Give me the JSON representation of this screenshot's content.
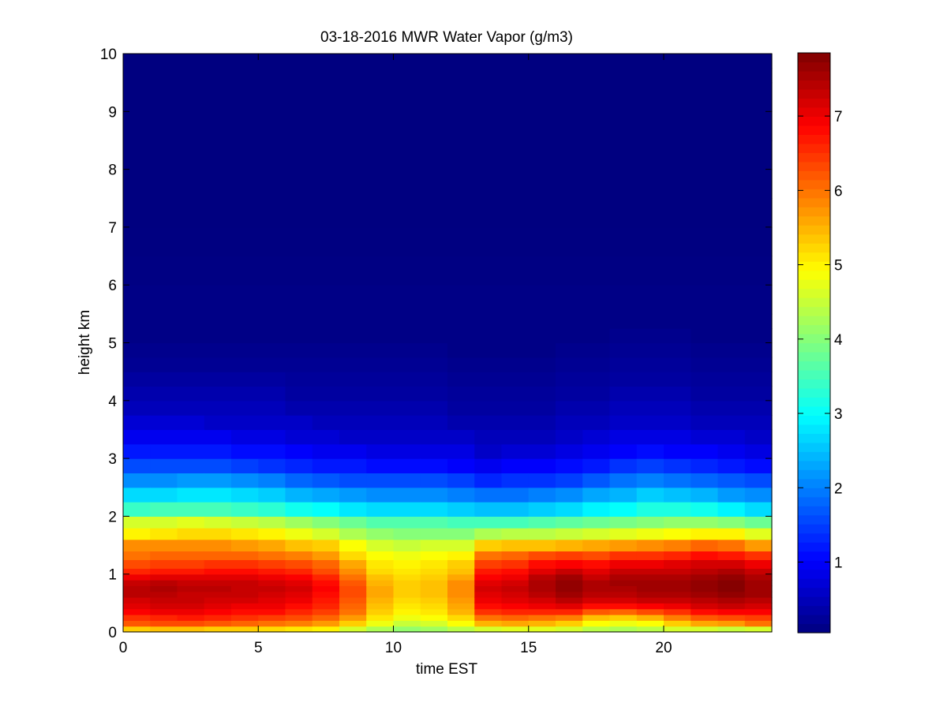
{
  "chart_data": {
    "type": "heatmap",
    "title": "03-18-2016 MWR Water Vapor (g/m3)",
    "xlabel": "time EST",
    "ylabel": "height km",
    "xlim": [
      0,
      24
    ],
    "ylim": [
      0,
      10
    ],
    "xticks": [
      0,
      5,
      10,
      15,
      20
    ],
    "yticks": [
      0,
      1,
      2,
      3,
      4,
      5,
      6,
      7,
      8,
      9,
      10
    ],
    "colorbar": {
      "colormap": "jet",
      "range": [
        0.05,
        7.85
      ],
      "ticks": [
        1,
        2,
        3,
        4,
        5,
        6,
        7
      ]
    },
    "grid": false,
    "time_hours_EST": [
      0,
      1,
      2,
      3,
      4,
      5,
      6,
      7,
      8,
      9,
      10,
      11,
      12,
      13,
      14,
      15,
      16,
      17,
      18,
      19,
      20,
      21,
      22,
      23
    ],
    "height_km": [
      0.0,
      0.1,
      0.2,
      0.3,
      0.4,
      0.5,
      0.6,
      0.7,
      0.8,
      0.9,
      1.0,
      1.1,
      1.25,
      1.4,
      1.6,
      1.8,
      2.0,
      2.25,
      2.5,
      2.75,
      3.0,
      3.25,
      3.5,
      3.75,
      4.0,
      4.25,
      4.5,
      4.75,
      5.0,
      5.25,
      5.5,
      6.0,
      6.5,
      7.0,
      7.5,
      8.0,
      8.5,
      9.0,
      9.5,
      9.75
    ],
    "water_vapor_profiles_g_m3": [
      [
        5.3,
        6.2,
        6.5,
        6.9,
        7.1,
        7.2,
        7.4,
        7.4,
        7.3,
        7.0,
        6.6,
        6.3,
        6.0,
        5.8,
        5.0,
        4.6,
        3.4,
        2.7,
        2.1,
        1.6,
        1.2,
        0.9,
        0.7,
        0.5,
        0.4,
        0.3,
        0.2,
        0.15,
        0.1,
        0.1,
        0.1,
        0.08,
        0.06,
        0.05,
        0.05,
        0.05,
        0.05,
        0.05,
        0.05,
        0.05
      ],
      [
        5.4,
        6.3,
        6.6,
        7.0,
        7.2,
        7.3,
        7.4,
        7.5,
        7.4,
        7.1,
        6.7,
        6.4,
        6.1,
        5.8,
        5.1,
        4.6,
        3.5,
        2.7,
        2.1,
        1.6,
        1.2,
        0.9,
        0.7,
        0.5,
        0.4,
        0.3,
        0.2,
        0.15,
        0.1,
        0.1,
        0.1,
        0.08,
        0.06,
        0.05,
        0.05,
        0.05,
        0.05,
        0.05,
        0.05,
        0.05
      ],
      [
        5.4,
        6.3,
        6.7,
        7.0,
        7.2,
        7.3,
        7.3,
        7.4,
        7.3,
        7.1,
        6.7,
        6.4,
        6.1,
        5.8,
        5.2,
        4.7,
        3.5,
        2.8,
        2.2,
        1.6,
        1.2,
        0.9,
        0.7,
        0.5,
        0.4,
        0.3,
        0.2,
        0.15,
        0.1,
        0.1,
        0.1,
        0.08,
        0.06,
        0.05,
        0.05,
        0.05,
        0.05,
        0.05,
        0.05,
        0.05
      ],
      [
        5.3,
        6.2,
        6.6,
        6.9,
        7.1,
        7.2,
        7.3,
        7.4,
        7.3,
        7.1,
        6.8,
        6.5,
        6.1,
        5.8,
        5.2,
        4.6,
        3.5,
        2.8,
        2.2,
        1.6,
        1.2,
        0.9,
        0.6,
        0.5,
        0.4,
        0.3,
        0.2,
        0.15,
        0.1,
        0.1,
        0.1,
        0.08,
        0.06,
        0.05,
        0.05,
        0.05,
        0.05,
        0.05,
        0.05,
        0.05
      ],
      [
        5.3,
        6.1,
        6.5,
        6.8,
        7.0,
        7.2,
        7.3,
        7.3,
        7.3,
        7.1,
        6.8,
        6.5,
        6.1,
        5.7,
        5.1,
        4.5,
        3.4,
        2.7,
        2.1,
        1.5,
        1.1,
        0.8,
        0.6,
        0.5,
        0.4,
        0.3,
        0.2,
        0.15,
        0.1,
        0.1,
        0.1,
        0.08,
        0.06,
        0.05,
        0.05,
        0.05,
        0.05,
        0.05,
        0.05,
        0.05
      ],
      [
        5.2,
        6.0,
        6.4,
        6.8,
        7.0,
        7.1,
        7.2,
        7.3,
        7.2,
        7.0,
        6.7,
        6.4,
        6.0,
        5.6,
        5.0,
        4.4,
        3.3,
        2.6,
        2.0,
        1.4,
        1.1,
        0.8,
        0.6,
        0.5,
        0.4,
        0.3,
        0.2,
        0.15,
        0.1,
        0.1,
        0.1,
        0.08,
        0.06,
        0.05,
        0.05,
        0.05,
        0.05,
        0.05,
        0.05,
        0.05
      ],
      [
        5.1,
        5.9,
        6.3,
        6.6,
        6.8,
        7.0,
        7.1,
        7.2,
        7.1,
        6.9,
        6.6,
        6.3,
        5.9,
        5.4,
        4.8,
        4.2,
        3.1,
        2.4,
        1.8,
        1.3,
        1.0,
        0.7,
        0.6,
        0.4,
        0.3,
        0.25,
        0.2,
        0.15,
        0.1,
        0.1,
        0.1,
        0.08,
        0.06,
        0.05,
        0.05,
        0.05,
        0.05,
        0.05,
        0.05,
        0.05
      ],
      [
        5.0,
        5.7,
        6.1,
        6.4,
        6.6,
        6.7,
        6.8,
        6.9,
        6.8,
        6.6,
        6.3,
        6.1,
        5.7,
        5.3,
        4.6,
        4.0,
        3.0,
        2.3,
        1.7,
        1.2,
        0.9,
        0.7,
        0.5,
        0.4,
        0.3,
        0.25,
        0.2,
        0.15,
        0.1,
        0.1,
        0.1,
        0.08,
        0.06,
        0.05,
        0.05,
        0.05,
        0.05,
        0.05,
        0.05,
        0.05
      ],
      [
        4.6,
        5.3,
        5.7,
        6.0,
        6.1,
        6.2,
        6.3,
        6.3,
        6.2,
        6.0,
        5.8,
        5.6,
        5.2,
        4.9,
        4.3,
        3.8,
        2.8,
        2.2,
        1.6,
        1.2,
        0.9,
        0.6,
        0.5,
        0.4,
        0.3,
        0.25,
        0.2,
        0.15,
        0.1,
        0.1,
        0.1,
        0.08,
        0.06,
        0.05,
        0.05,
        0.05,
        0.05,
        0.05,
        0.05,
        0.05
      ],
      [
        4.3,
        4.8,
        5.1,
        5.3,
        5.4,
        5.5,
        5.6,
        5.6,
        5.5,
        5.4,
        5.2,
        5.1,
        4.9,
        4.6,
        4.1,
        3.6,
        2.7,
        2.1,
        1.6,
        1.1,
        0.8,
        0.6,
        0.5,
        0.4,
        0.3,
        0.25,
        0.2,
        0.15,
        0.1,
        0.1,
        0.1,
        0.08,
        0.06,
        0.05,
        0.05,
        0.05,
        0.05,
        0.05,
        0.05,
        0.05
      ],
      [
        4.1,
        4.5,
        4.8,
        5.0,
        5.1,
        5.2,
        5.3,
        5.3,
        5.3,
        5.2,
        5.1,
        5.0,
        4.8,
        4.5,
        4.0,
        3.6,
        2.7,
        2.1,
        1.6,
        1.1,
        0.8,
        0.6,
        0.5,
        0.4,
        0.3,
        0.25,
        0.2,
        0.15,
        0.1,
        0.1,
        0.1,
        0.08,
        0.06,
        0.05,
        0.05,
        0.05,
        0.05,
        0.05,
        0.05,
        0.05
      ],
      [
        4.2,
        4.6,
        4.9,
        5.1,
        5.2,
        5.3,
        5.4,
        5.4,
        5.4,
        5.3,
        5.2,
        5.1,
        4.9,
        4.6,
        4.0,
        3.6,
        2.7,
        2.1,
        1.6,
        1.1,
        0.8,
        0.6,
        0.5,
        0.4,
        0.3,
        0.25,
        0.2,
        0.15,
        0.1,
        0.1,
        0.1,
        0.08,
        0.06,
        0.05,
        0.05,
        0.05,
        0.05,
        0.05,
        0.05,
        0.05
      ],
      [
        4.4,
        4.9,
        5.2,
        5.5,
        5.6,
        5.7,
        5.8,
        5.8,
        5.8,
        5.6,
        5.4,
        5.3,
        5.0,
        4.6,
        4.0,
        3.5,
        2.6,
        2.0,
        1.5,
        1.0,
        0.8,
        0.6,
        0.4,
        0.3,
        0.25,
        0.2,
        0.15,
        0.1,
        0.1,
        0.1,
        0.1,
        0.08,
        0.06,
        0.05,
        0.05,
        0.05,
        0.05,
        0.05,
        0.05,
        0.05
      ],
      [
        4.6,
        5.5,
        6.0,
        6.5,
        6.8,
        7.0,
        7.1,
        7.2,
        7.1,
        6.9,
        6.7,
        6.4,
        6.0,
        5.3,
        4.3,
        3.5,
        2.5,
        1.9,
        1.3,
        0.9,
        0.6,
        0.5,
        0.4,
        0.3,
        0.25,
        0.2,
        0.15,
        0.1,
        0.1,
        0.1,
        0.1,
        0.08,
        0.06,
        0.05,
        0.05,
        0.05,
        0.05,
        0.05,
        0.05,
        0.05
      ],
      [
        4.7,
        5.6,
        6.1,
        6.6,
        6.9,
        7.1,
        7.2,
        7.3,
        7.2,
        7.0,
        6.8,
        6.5,
        6.1,
        5.4,
        4.4,
        3.5,
        2.5,
        1.9,
        1.4,
        1.0,
        0.7,
        0.5,
        0.4,
        0.3,
        0.25,
        0.2,
        0.15,
        0.1,
        0.1,
        0.1,
        0.1,
        0.08,
        0.06,
        0.05,
        0.05,
        0.05,
        0.05,
        0.05,
        0.05,
        0.05
      ],
      [
        4.7,
        5.5,
        6.0,
        6.6,
        7.0,
        7.2,
        7.4,
        7.5,
        7.5,
        7.4,
        7.1,
        6.8,
        6.3,
        5.4,
        4.4,
        3.6,
        2.6,
        2.0,
        1.4,
        1.0,
        0.7,
        0.5,
        0.4,
        0.3,
        0.25,
        0.2,
        0.15,
        0.1,
        0.1,
        0.1,
        0.1,
        0.08,
        0.06,
        0.05,
        0.05,
        0.05,
        0.05,
        0.05,
        0.05,
        0.05
      ],
      [
        4.6,
        5.3,
        5.9,
        6.6,
        7.1,
        7.4,
        7.6,
        7.7,
        7.7,
        7.6,
        7.3,
        6.9,
        6.4,
        5.5,
        4.5,
        3.7,
        2.7,
        2.1,
        1.5,
        1.1,
        0.8,
        0.6,
        0.5,
        0.4,
        0.3,
        0.25,
        0.2,
        0.15,
        0.1,
        0.1,
        0.1,
        0.08,
        0.06,
        0.05,
        0.05,
        0.05,
        0.05,
        0.05,
        0.05,
        0.05
      ],
      [
        4.4,
        4.9,
        5.4,
        6.2,
        6.8,
        7.2,
        7.4,
        7.5,
        7.5,
        7.3,
        7.1,
        6.8,
        6.3,
        5.6,
        4.6,
        3.8,
        2.9,
        2.3,
        1.7,
        1.2,
        0.9,
        0.7,
        0.5,
        0.4,
        0.3,
        0.25,
        0.2,
        0.15,
        0.1,
        0.1,
        0.1,
        0.08,
        0.06,
        0.05,
        0.05,
        0.05,
        0.05,
        0.05,
        0.05,
        0.05
      ],
      [
        4.3,
        4.8,
        5.3,
        6.1,
        6.8,
        7.2,
        7.4,
        7.5,
        7.6,
        7.5,
        7.3,
        7.0,
        6.5,
        5.7,
        4.7,
        3.9,
        3.0,
        2.4,
        1.9,
        1.4,
        1.0,
        0.8,
        0.6,
        0.5,
        0.4,
        0.3,
        0.25,
        0.2,
        0.15,
        0.1,
        0.1,
        0.08,
        0.06,
        0.05,
        0.05,
        0.05,
        0.05,
        0.05,
        0.05,
        0.05
      ],
      [
        4.4,
        4.9,
        5.5,
        6.3,
        6.9,
        7.3,
        7.5,
        7.6,
        7.6,
        7.5,
        7.3,
        7.0,
        6.5,
        5.8,
        4.8,
        4.0,
        3.2,
        2.6,
        2.0,
        1.5,
        1.1,
        0.8,
        0.6,
        0.5,
        0.4,
        0.3,
        0.25,
        0.2,
        0.15,
        0.1,
        0.1,
        0.08,
        0.06,
        0.05,
        0.05,
        0.05,
        0.05,
        0.05,
        0.05,
        0.05
      ],
      [
        4.6,
        5.3,
        5.9,
        6.5,
        7.0,
        7.3,
        7.5,
        7.6,
        7.6,
        7.5,
        7.3,
        7.1,
        6.6,
        5.9,
        4.9,
        4.1,
        3.2,
        2.5,
        1.9,
        1.4,
        1.0,
        0.8,
        0.6,
        0.5,
        0.4,
        0.3,
        0.25,
        0.2,
        0.15,
        0.1,
        0.1,
        0.08,
        0.06,
        0.05,
        0.05,
        0.05,
        0.05,
        0.05,
        0.05,
        0.05
      ],
      [
        4.6,
        5.6,
        6.2,
        6.8,
        7.2,
        7.4,
        7.6,
        7.7,
        7.7,
        7.6,
        7.4,
        7.2,
        6.8,
        6.1,
        5.0,
        4.1,
        3.1,
        2.4,
        1.8,
        1.3,
        1.0,
        0.7,
        0.5,
        0.4,
        0.3,
        0.25,
        0.2,
        0.15,
        0.1,
        0.1,
        0.1,
        0.08,
        0.06,
        0.05,
        0.05,
        0.05,
        0.05,
        0.05,
        0.05,
        0.05
      ],
      [
        4.5,
        5.7,
        6.3,
        6.9,
        7.3,
        7.5,
        7.7,
        7.8,
        7.8,
        7.7,
        7.5,
        7.2,
        6.7,
        6.0,
        5.0,
        4.0,
        2.9,
        2.2,
        1.7,
        1.2,
        0.9,
        0.7,
        0.5,
        0.4,
        0.3,
        0.25,
        0.2,
        0.15,
        0.1,
        0.1,
        0.1,
        0.08,
        0.06,
        0.05,
        0.05,
        0.05,
        0.05,
        0.05,
        0.05,
        0.05
      ],
      [
        4.6,
        6.0,
        6.4,
        6.9,
        7.2,
        7.4,
        7.6,
        7.6,
        7.6,
        7.5,
        7.3,
        7.0,
        6.5,
        5.7,
        4.7,
        3.8,
        2.7,
        2.1,
        1.6,
        1.1,
        0.8,
        0.6,
        0.5,
        0.4,
        0.3,
        0.25,
        0.2,
        0.15,
        0.1,
        0.1,
        0.1,
        0.08,
        0.06,
        0.05,
        0.05,
        0.05,
        0.05,
        0.05,
        0.05,
        0.05
      ]
    ]
  }
}
